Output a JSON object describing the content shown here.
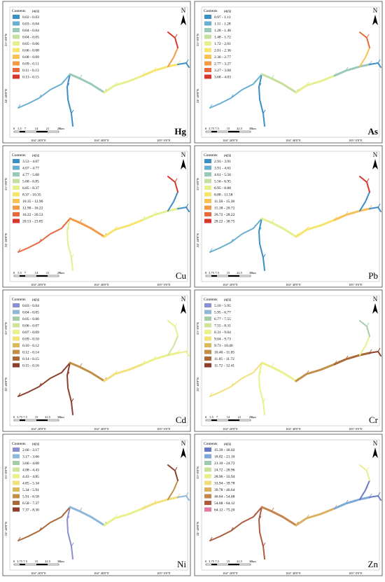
{
  "legend_title": "Contents",
  "unit": "μg/g",
  "north": "N",
  "lat_labels": [
    "25° 0'0\"N",
    "24° 40'0\"N"
  ],
  "lon_labels": [
    "104° 20'0\"E",
    "104° 40'0\"E",
    "105° 0'0\"E"
  ],
  "panels": [
    {
      "element": "Hg",
      "scale": [
        "0",
        "3.5",
        "7",
        "14",
        "21",
        "28",
        "km"
      ],
      "legend": [
        {
          "range": "0.02 - 0.03",
          "color": "#3b8fc6"
        },
        {
          "range": "0.03 - 0.04",
          "color": "#6aaed0"
        },
        {
          "range": "0.04 - 0.04",
          "color": "#9bc9b9"
        },
        {
          "range": "0.04 - 0.05",
          "color": "#c5dfa0"
        },
        {
          "range": "0.05 - 0.06",
          "color": "#e6ef8e"
        },
        {
          "range": "0.06 - 0.08",
          "color": "#f6e46c"
        },
        {
          "range": "0.08 - 0.09",
          "color": "#f7c158"
        },
        {
          "range": "0.09 - 0.11",
          "color": "#f39a48"
        },
        {
          "range": "0.11 - 0.13",
          "color": "#e8693c"
        },
        {
          "range": "0.13 - 0.15",
          "color": "#d8362c"
        }
      ],
      "segment_classes": [
        0,
        1,
        2,
        4,
        5,
        7,
        9,
        0
      ]
    },
    {
      "element": "As",
      "scale": [
        "0",
        "3.75",
        "7.5",
        "15",
        "22.5",
        "30",
        "km"
      ],
      "legend": [
        {
          "range": "0.97 - 1.11",
          "color": "#3b8fc6"
        },
        {
          "range": "1.11 - 1.28",
          "color": "#6aaed0"
        },
        {
          "range": "1.28 - 1.48",
          "color": "#9bc9b9"
        },
        {
          "range": "1.48 - 1.72",
          "color": "#c5dfa0"
        },
        {
          "range": "1.72 - 2.01",
          "color": "#e6ef8e"
        },
        {
          "range": "2.01 - 2.36",
          "color": "#f6e46c"
        },
        {
          "range": "2.36 - 2.77",
          "color": "#f7c158"
        },
        {
          "range": "2.77 - 3.27",
          "color": "#f39a48"
        },
        {
          "range": "3.27 - 3.68",
          "color": "#e8693c"
        },
        {
          "range": "3.68 - 4.03",
          "color": "#d8362c"
        }
      ],
      "segment_classes": [
        0,
        1,
        3,
        4,
        2,
        6,
        8,
        0
      ]
    },
    {
      "element": "Cu",
      "scale": [
        "0",
        "3.5",
        "7",
        "14",
        "21",
        "28",
        "km"
      ],
      "legend": [
        {
          "range": "3.53 - 4.07",
          "color": "#3b8fc6"
        },
        {
          "range": "4.07 - 4.77",
          "color": "#6aaed0"
        },
        {
          "range": "4.77 - 5.68",
          "color": "#9bc9b9"
        },
        {
          "range": "5.68 - 6.85",
          "color": "#c5dfa0"
        },
        {
          "range": "6.85 - 8.37",
          "color": "#e6ef8e"
        },
        {
          "range": "8.37 - 10.35",
          "color": "#f6e46c"
        },
        {
          "range": "10.35 - 12.90",
          "color": "#f7c158"
        },
        {
          "range": "12.90 - 16.22",
          "color": "#f39a48"
        },
        {
          "range": "16.22 - 20.53",
          "color": "#e8693c"
        },
        {
          "range": "20.53 - 23.85",
          "color": "#d8362c"
        }
      ],
      "segment_classes": [
        4,
        8,
        7,
        5,
        4,
        0,
        9,
        0
      ]
    },
    {
      "element": "Pb",
      "scale": [
        "0",
        "3.75",
        "7.5",
        "15",
        "22.5",
        "30",
        "km"
      ],
      "legend": [
        {
          "range": "2.93 - 3.91",
          "color": "#3b8fc6"
        },
        {
          "range": "3.91 - 4.61",
          "color": "#6aaed0"
        },
        {
          "range": "4.61 - 5.56",
          "color": "#9bc9b9"
        },
        {
          "range": "5.56 - 6.95",
          "color": "#c5dfa0"
        },
        {
          "range": "6.95 - 8.88",
          "color": "#e6ef8e"
        },
        {
          "range": "8.88 - 11.58",
          "color": "#f6e46c"
        },
        {
          "range": "11.58 - 15.38",
          "color": "#f7c158"
        },
        {
          "range": "15.38 - 20.72",
          "color": "#f39a48"
        },
        {
          "range": "20.72 - 28.22",
          "color": "#e8693c"
        },
        {
          "range": "28.22 - 38.75",
          "color": "#d8362c"
        }
      ],
      "segment_classes": [
        0,
        1,
        4,
        5,
        6,
        0,
        9,
        0
      ]
    },
    {
      "element": "Cd",
      "scale": [
        "0",
        "3.75",
        "7.5",
        "15",
        "22.5",
        "30",
        "km"
      ],
      "legend": [
        {
          "range": "0.03 - 0.04",
          "color": "#8a8fd0"
        },
        {
          "range": "0.04 - 0.05",
          "color": "#8fb8d8"
        },
        {
          "range": "0.05 - 0.06",
          "color": "#a6cda8"
        },
        {
          "range": "0.06 - 0.07",
          "color": "#cfe39a"
        },
        {
          "range": "0.07 - 0.09",
          "color": "#eaf08a"
        },
        {
          "range": "0.09 - 0.10",
          "color": "#f2e07a"
        },
        {
          "range": "0.10 - 0.12",
          "color": "#d9b860"
        },
        {
          "range": "0.12 - 0.14",
          "color": "#c09048"
        },
        {
          "range": "0.14 - 0.15",
          "color": "#a86838"
        },
        {
          "range": "0.15 - 0.16",
          "color": "#8e3e2c"
        }
      ],
      "segment_classes": [
        9,
        9,
        7,
        5,
        4,
        3,
        4,
        4
      ]
    },
    {
      "element": "Cr",
      "scale": [
        "0",
        "3.5",
        "7",
        "14",
        "21",
        "28",
        "km"
      ],
      "legend": [
        {
          "range": "5.10 - 5.95",
          "color": "#8a8fd0"
        },
        {
          "range": "5.95 - 6.77",
          "color": "#8fb8d8"
        },
        {
          "range": "6.77 - 7.55",
          "color": "#a6cda8"
        },
        {
          "range": "7.55 - 8.31",
          "color": "#cfe39a"
        },
        {
          "range": "8.31 - 9.04",
          "color": "#eaf08a"
        },
        {
          "range": "9.04 - 9.73",
          "color": "#f2e07a"
        },
        {
          "range": "9.73 - 10.40",
          "color": "#d9b860"
        },
        {
          "range": "10.40 - 11.05",
          "color": "#c09048"
        },
        {
          "range": "11.05 - 11.72",
          "color": "#a86838"
        },
        {
          "range": "11.72 - 12.41",
          "color": "#8e3e2c"
        }
      ],
      "segment_classes": [
        4,
        5,
        4,
        7,
        8,
        4,
        2,
        9
      ]
    },
    {
      "element": "Ni",
      "scale": [
        "0",
        "3.75",
        "7.5",
        "15",
        "22.5",
        "30",
        "km"
      ],
      "legend": [
        {
          "range": "2.60 - 3.17",
          "color": "#8a8fd0"
        },
        {
          "range": "3.17 - 3.66",
          "color": "#8fb8d8"
        },
        {
          "range": "3.66 - 4.08",
          "color": "#a6cda8"
        },
        {
          "range": "4.08 - 4.43",
          "color": "#cfe39a"
        },
        {
          "range": "4.43 - 4.85",
          "color": "#eaf08a"
        },
        {
          "range": "4.85 - 5.34",
          "color": "#f2e07a"
        },
        {
          "range": "5.34 - 5.91",
          "color": "#d9b860"
        },
        {
          "range": "5.91 - 6.58",
          "color": "#c09048"
        },
        {
          "range": "6.58 - 7.37",
          "color": "#a86838"
        },
        {
          "range": "7.37 - 8.30",
          "color": "#8e3e2c"
        }
      ],
      "segment_classes": [
        0,
        8,
        1,
        4,
        5,
        7,
        9,
        1
      ]
    },
    {
      "element": "Zn",
      "scale": [
        "0",
        "3.75",
        "7.5",
        "15",
        "22.5",
        "30",
        "km"
      ],
      "legend": [
        {
          "range": "15.39 - 18.02",
          "color": "#6a78c8"
        },
        {
          "range": "18.02 - 21.10",
          "color": "#7fa8d6"
        },
        {
          "range": "21.10 - 24.72",
          "color": "#9ccab0"
        },
        {
          "range": "24.72 - 28.96",
          "color": "#c8e09c"
        },
        {
          "range": "28.96 - 33.94",
          "color": "#e8ef8c"
        },
        {
          "range": "33.94 - 39.78",
          "color": "#f1dc7a"
        },
        {
          "range": "39.78 - 46.64",
          "color": "#dcb060"
        },
        {
          "range": "46.64 - 54.68",
          "color": "#c4844c"
        },
        {
          "range": "54.68 - 64.12",
          "color": "#ae5a40"
        },
        {
          "range": "64.12 - 75.20",
          "color": "#e07aa0"
        }
      ],
      "segment_classes": [
        8,
        8,
        7,
        6,
        1,
        0,
        4,
        0
      ]
    }
  ]
}
